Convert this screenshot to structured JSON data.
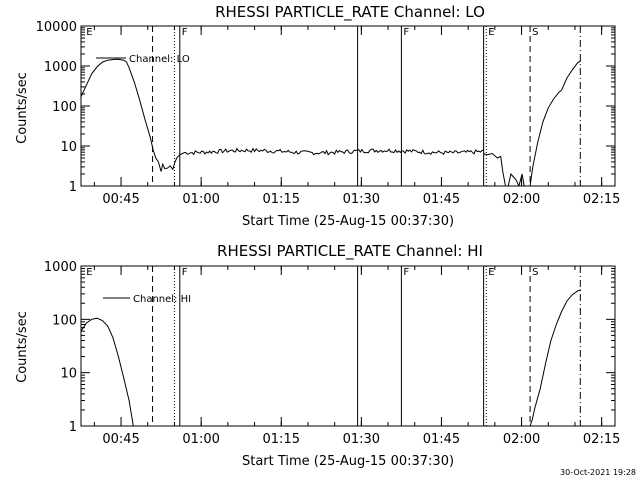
{
  "chart_data": [
    {
      "type": "line",
      "title": "RHESSI PARTICLE_RATE Channel: LO",
      "xlabel": "Start Time (25-Aug-15 00:37:30)",
      "ylabel": "Counts/sec",
      "yscale": "log",
      "ylim": [
        1,
        10000
      ],
      "xlim_minutes": [
        0,
        100
      ],
      "x_ticks": [
        {
          "t": 7.5,
          "label": "00:45"
        },
        {
          "t": 22.5,
          "label": "01:00"
        },
        {
          "t": 37.5,
          "label": "01:15"
        },
        {
          "t": 52.5,
          "label": "01:30"
        },
        {
          "t": 67.5,
          "label": "01:45"
        },
        {
          "t": 82.5,
          "label": "02:00"
        },
        {
          "t": 97.5,
          "label": "02:15"
        }
      ],
      "y_ticks": [
        {
          "v": 1,
          "label": "1"
        },
        {
          "v": 10,
          "label": "10"
        },
        {
          "v": 100,
          "label": "100"
        },
        {
          "v": 1000,
          "label": "1000"
        },
        {
          "v": 10000,
          "label": "10000"
        }
      ],
      "legend": {
        "label": "Channel: LO",
        "placement": "top-left"
      },
      "markers": [
        {
          "t": 0.6,
          "style": "none",
          "label": "E"
        },
        {
          "t": 13.4,
          "style": "dashed",
          "label": ""
        },
        {
          "t": 17.5,
          "style": "dotted",
          "label": ""
        },
        {
          "t": 18.5,
          "style": "solid",
          "label": "F"
        },
        {
          "t": 51.8,
          "style": "solid",
          "label": ""
        },
        {
          "t": 60.0,
          "style": "solid",
          "label": "F"
        },
        {
          "t": 75.4,
          "style": "solid",
          "label": ""
        },
        {
          "t": 75.9,
          "style": "dotted",
          "label": "E"
        },
        {
          "t": 84.1,
          "style": "dashed",
          "label": "S"
        },
        {
          "t": 93.5,
          "style": "dashdot",
          "label": ""
        }
      ],
      "series": [
        {
          "segments": [
            [
              [
                0,
                170
              ],
              [
                1,
                330
              ],
              [
                2,
                640
              ],
              [
                3,
                950
              ],
              [
                4,
                1250
              ],
              [
                5,
                1400
              ],
              [
                6,
                1450
              ],
              [
                7,
                1470
              ],
              [
                8,
                1400
              ],
              [
                8.5,
                1280
              ],
              [
                9,
                900
              ],
              [
                10,
                390
              ],
              [
                11,
                140
              ],
              [
                12,
                45
              ],
              [
                13,
                16
              ],
              [
                13.5,
                8
              ],
              [
                14,
                5
              ],
              [
                14.5,
                4
              ],
              [
                15,
                2.3
              ],
              [
                15.3,
                3.5
              ],
              [
                15.7,
                2.7
              ],
              [
                16.2,
                2.8
              ],
              [
                16.7,
                3.2
              ],
              [
                17.2,
                2.6
              ],
              [
                17.6,
                4
              ],
              [
                18,
                5.2
              ],
              [
                18.5,
                6
              ],
              [
                19,
                6.5
              ]
            ],
            [
              [
                90,
                250
              ],
              [
                91,
                500
              ],
              [
                92,
                800
              ],
              [
                93,
                1200
              ],
              [
                93.6,
                1350
              ]
            ]
          ]
        }
      ]
    },
    {
      "type": "line",
      "title": "RHESSI PARTICLE_RATE Channel: HI",
      "xlabel": "Start Time (25-Aug-15 00:37:30)",
      "ylabel": "Counts/sec",
      "yscale": "log",
      "ylim": [
        1,
        1000
      ],
      "xlim_minutes": [
        0,
        100
      ],
      "x_ticks": [
        {
          "t": 7.5,
          "label": "00:45"
        },
        {
          "t": 22.5,
          "label": "01:00"
        },
        {
          "t": 37.5,
          "label": "01:15"
        },
        {
          "t": 52.5,
          "label": "01:30"
        },
        {
          "t": 67.5,
          "label": "01:45"
        },
        {
          "t": 82.5,
          "label": "02:00"
        },
        {
          "t": 97.5,
          "label": "02:15"
        }
      ],
      "y_ticks": [
        {
          "v": 1,
          "label": "1"
        },
        {
          "v": 10,
          "label": "10"
        },
        {
          "v": 100,
          "label": "100"
        },
        {
          "v": 1000,
          "label": "1000"
        }
      ],
      "legend": {
        "label": "Channel: HI",
        "placement": "top-left"
      },
      "markers": [
        {
          "t": 0.6,
          "style": "none",
          "label": "E"
        },
        {
          "t": 13.4,
          "style": "dashed",
          "label": ""
        },
        {
          "t": 17.5,
          "style": "dotted",
          "label": ""
        },
        {
          "t": 18.5,
          "style": "solid",
          "label": "F"
        },
        {
          "t": 51.8,
          "style": "solid",
          "label": ""
        },
        {
          "t": 60.0,
          "style": "solid",
          "label": "F"
        },
        {
          "t": 75.4,
          "style": "solid",
          "label": ""
        },
        {
          "t": 75.9,
          "style": "dotted",
          "label": "E"
        },
        {
          "t": 84.1,
          "style": "dashed",
          "label": "S"
        },
        {
          "t": 93.5,
          "style": "dashdot",
          "label": ""
        }
      ],
      "series": [
        {
          "segments": [
            [
              [
                0,
                60
              ],
              [
                1,
                85
              ],
              [
                2,
                100
              ],
              [
                3,
                105
              ],
              [
                4,
                95
              ],
              [
                5,
                75
              ],
              [
                6,
                45
              ],
              [
                7,
                20
              ],
              [
                8,
                8
              ],
              [
                9,
                3
              ],
              [
                9.8,
                1
              ]
            ],
            [
              [
                84.1,
                1
              ],
              [
                84.5,
                1.3
              ],
              [
                85,
                2.2
              ],
              [
                86,
                5
              ],
              [
                87,
                15
              ],
              [
                88,
                40
              ],
              [
                89,
                80
              ],
              [
                90,
                140
              ],
              [
                91,
                220
              ],
              [
                92,
                290
              ],
              [
                93,
                340
              ],
              [
                93.6,
                360
              ]
            ]
          ]
        }
      ]
    }
  ],
  "timestamp": "30-Oct-2021 19:28"
}
